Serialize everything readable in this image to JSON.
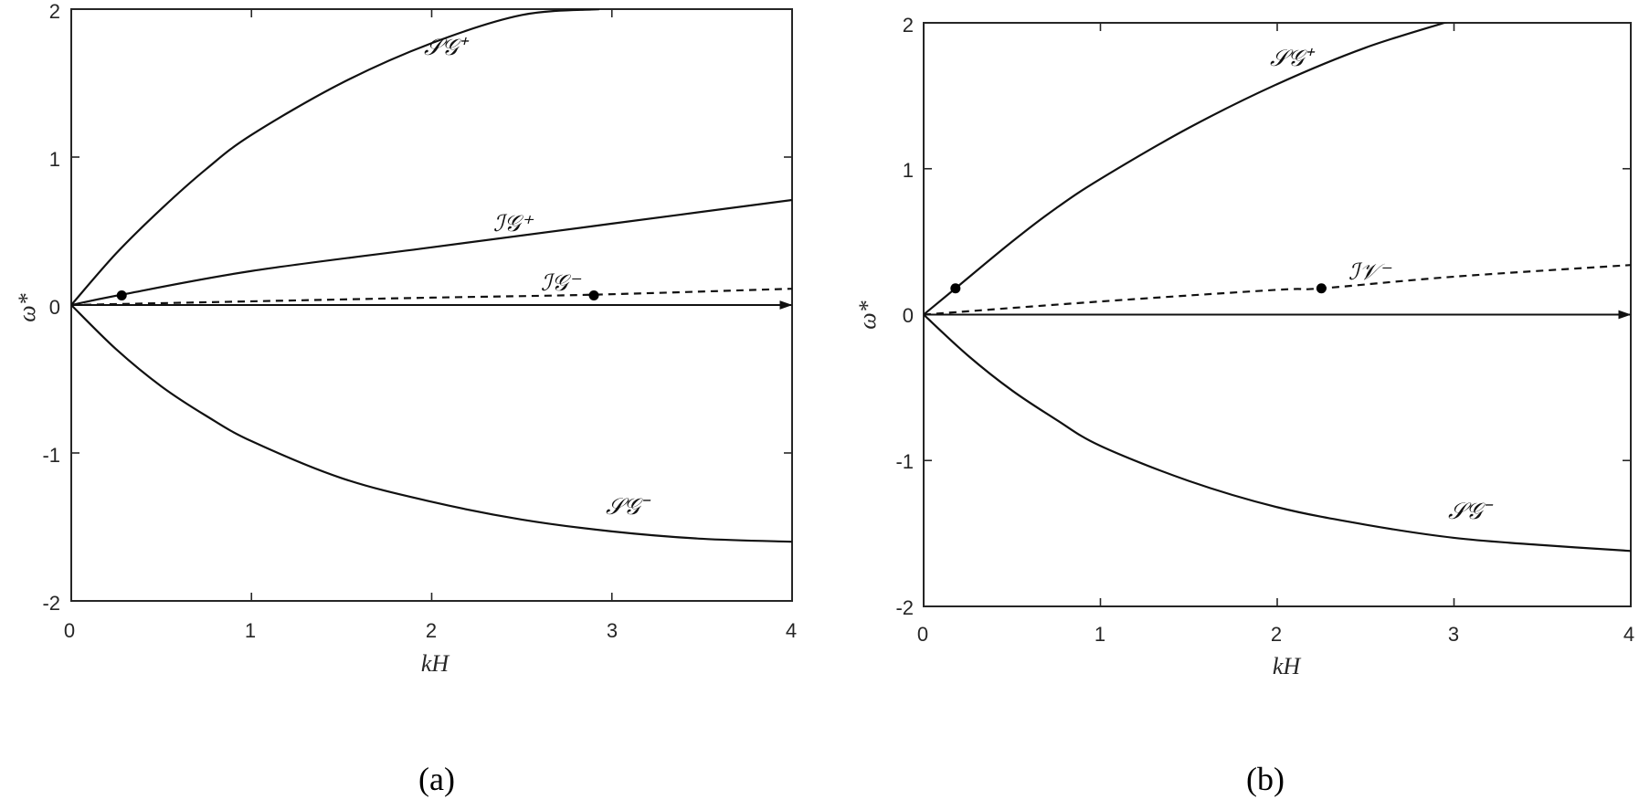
{
  "chart_data": [
    {
      "type": "line",
      "panel_label": "(a)",
      "xlabel": "kH",
      "ylabel": "ω*",
      "xlim": [
        0,
        4
      ],
      "ylim": [
        -2,
        2
      ],
      "xticks": [
        "0",
        "1",
        "2",
        "3",
        "4"
      ],
      "yticks": [
        "-2",
        "-1",
        "0",
        "1",
        "2"
      ],
      "series": [
        {
          "name": "𝒮𝒢⁺",
          "style": "solid",
          "x": [
            0,
            0.25,
            0.5,
            0.75,
            1,
            1.5,
            2,
            2.5,
            2.93
          ],
          "y": [
            0,
            0.35,
            0.65,
            0.92,
            1.15,
            1.5,
            1.77,
            1.96,
            2.0
          ]
        },
        {
          "name": "ℐ𝒢⁺",
          "style": "solid",
          "x": [
            0,
            0.28,
            1,
            2,
            3,
            4
          ],
          "y": [
            0,
            0.07,
            0.23,
            0.39,
            0.55,
            0.71
          ]
        },
        {
          "name": "ℐ𝒢⁻",
          "style": "dashed",
          "x": [
            0,
            1,
            2,
            2.9,
            4
          ],
          "y": [
            0,
            0.025,
            0.05,
            0.07,
            0.11
          ]
        },
        {
          "name": "𝒮𝒢⁻",
          "style": "solid",
          "x": [
            0,
            0.25,
            0.5,
            0.75,
            1,
            1.5,
            2,
            2.5,
            3,
            3.5,
            4
          ],
          "y": [
            0,
            -0.3,
            -0.55,
            -0.75,
            -0.92,
            -1.17,
            -1.33,
            -1.45,
            -1.53,
            -1.58,
            -1.6
          ]
        }
      ],
      "markers": [
        {
          "x": 0.28,
          "y": 0.065
        },
        {
          "x": 2.9,
          "y": 0.065
        }
      ],
      "arrow": {
        "x0": 0,
        "y0": 0,
        "x1": 4,
        "y1": 0
      }
    },
    {
      "type": "line",
      "panel_label": "(b)",
      "xlabel": "kH",
      "ylabel": "ω*",
      "xlim": [
        0,
        4
      ],
      "ylim": [
        -2,
        2
      ],
      "xticks": [
        "0",
        "1",
        "2",
        "3",
        "4"
      ],
      "yticks": [
        "-2",
        "-1",
        "0",
        "1",
        "2"
      ],
      "series": [
        {
          "name": "𝒮𝒢⁺",
          "style": "solid",
          "x": [
            0,
            0.18,
            0.5,
            0.75,
            1,
            1.5,
            2,
            2.5,
            3
          ],
          "y": [
            0,
            0.18,
            0.5,
            0.73,
            0.93,
            1.28,
            1.58,
            1.83,
            2.02
          ]
        },
        {
          "name": "ℐ𝒱⁻",
          "style": "dashed",
          "x": [
            0,
            1,
            2,
            2.25,
            3,
            4
          ],
          "y": [
            0,
            0.09,
            0.17,
            0.18,
            0.26,
            0.34
          ]
        },
        {
          "name": "𝒮𝒢⁻",
          "style": "solid",
          "x": [
            0,
            0.25,
            0.5,
            0.75,
            1,
            1.5,
            2,
            2.5,
            3,
            3.5,
            4
          ],
          "y": [
            0,
            -0.28,
            -0.52,
            -0.72,
            -0.9,
            -1.14,
            -1.32,
            -1.44,
            -1.53,
            -1.58,
            -1.62
          ]
        }
      ],
      "markers": [
        {
          "x": 0.18,
          "y": 0.18
        },
        {
          "x": 2.25,
          "y": 0.18
        }
      ],
      "arrow": {
        "x0": 0,
        "y0": 0,
        "x1": 4,
        "y1": 0
      }
    }
  ]
}
